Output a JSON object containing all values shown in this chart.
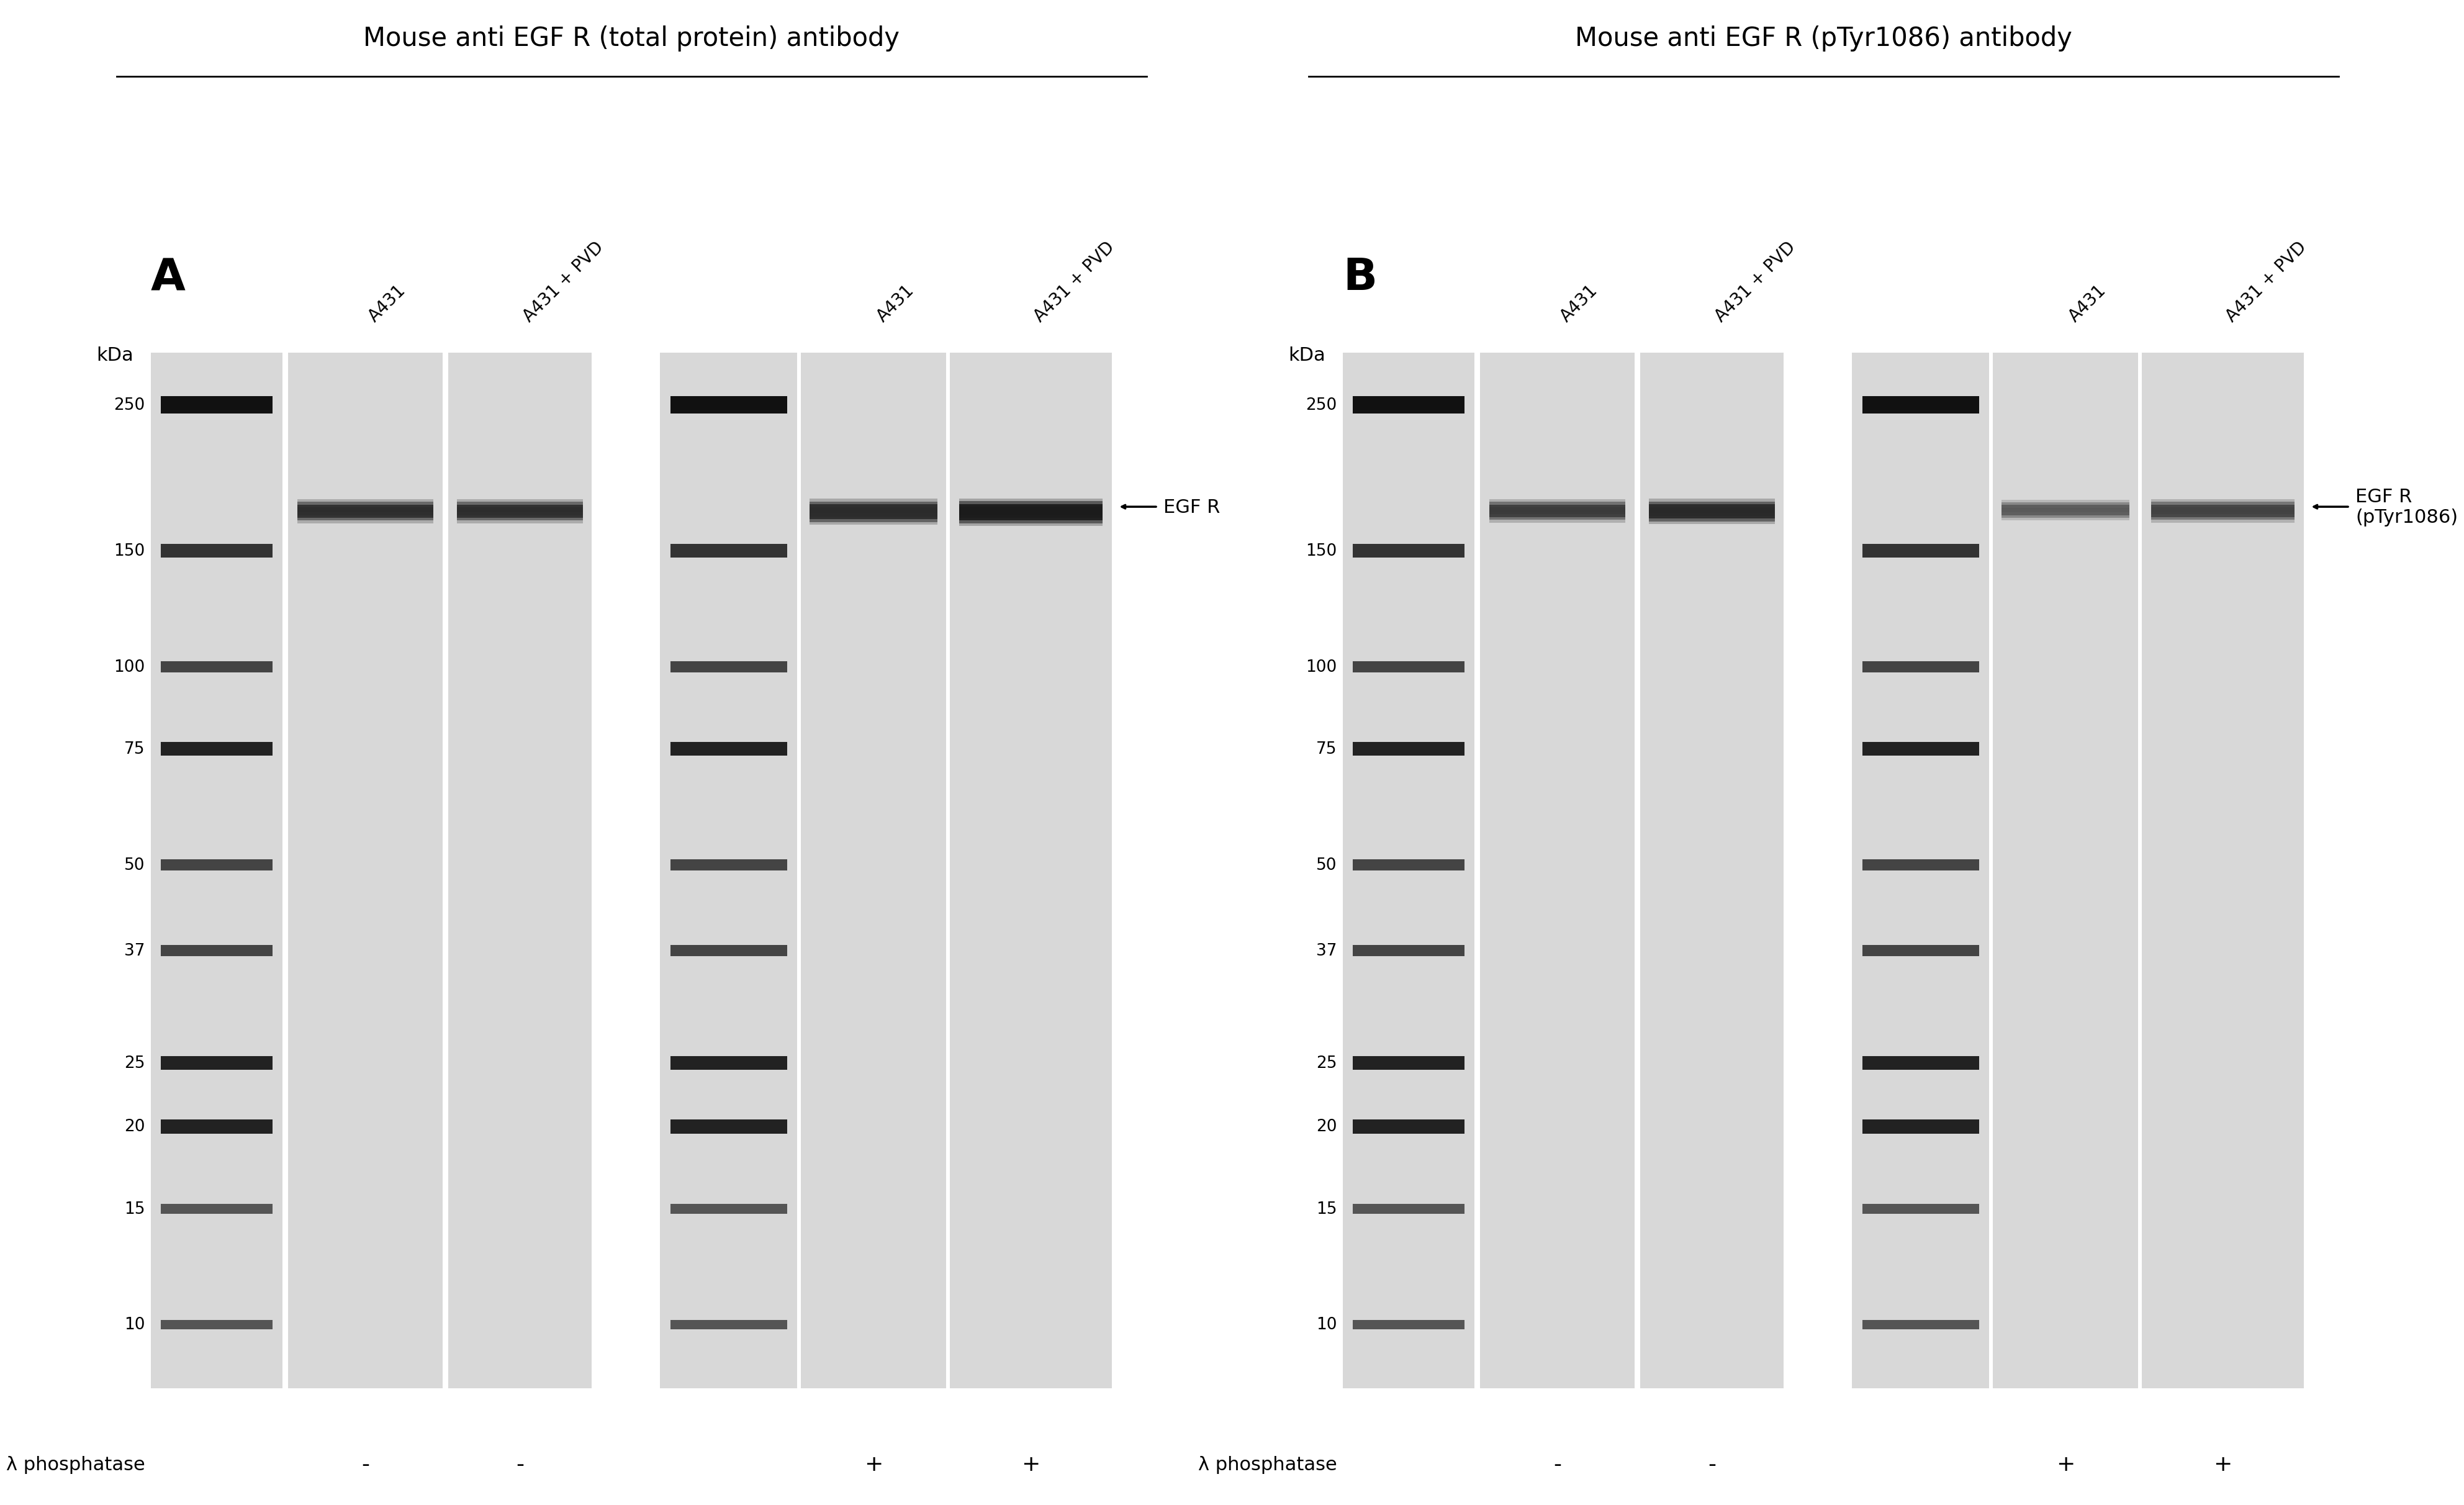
{
  "fig_width": 38.4,
  "fig_height": 25.86,
  "bg_color": "#ffffff",
  "panel_A_title": "Mouse anti EGF R (total protein) antibody",
  "panel_B_title": "Mouse anti EGF R (pTyr1086) antibody",
  "panel_A_label": "A",
  "panel_B_label": "B",
  "sample_labels": [
    "A431",
    "A431 + PVD",
    "A431",
    "A431 + PVD"
  ],
  "kda_label": "kDa",
  "mw_markers": [
    250,
    150,
    100,
    75,
    50,
    37,
    25,
    20,
    15,
    10
  ],
  "phosphatase_label": "λ phosphatase",
  "phosphatase_signs_A": [
    "-",
    "-",
    "+",
    "+"
  ],
  "phosphatase_signs_B": [
    "-",
    "-",
    "+",
    "+"
  ],
  "arrow_label_A": "EGF R",
  "arrow_label_B": "EGF R\n(pTyr1086)",
  "gel_bg": "#e8e8e8",
  "ladder_color_dark": "#1a1a1a",
  "ladder_color_mid": "#555555",
  "band_color_strong": "#222222",
  "band_color_medium": "#444444",
  "band_color_light": "#888888",
  "lane_bg_color": "#d8d8d8"
}
